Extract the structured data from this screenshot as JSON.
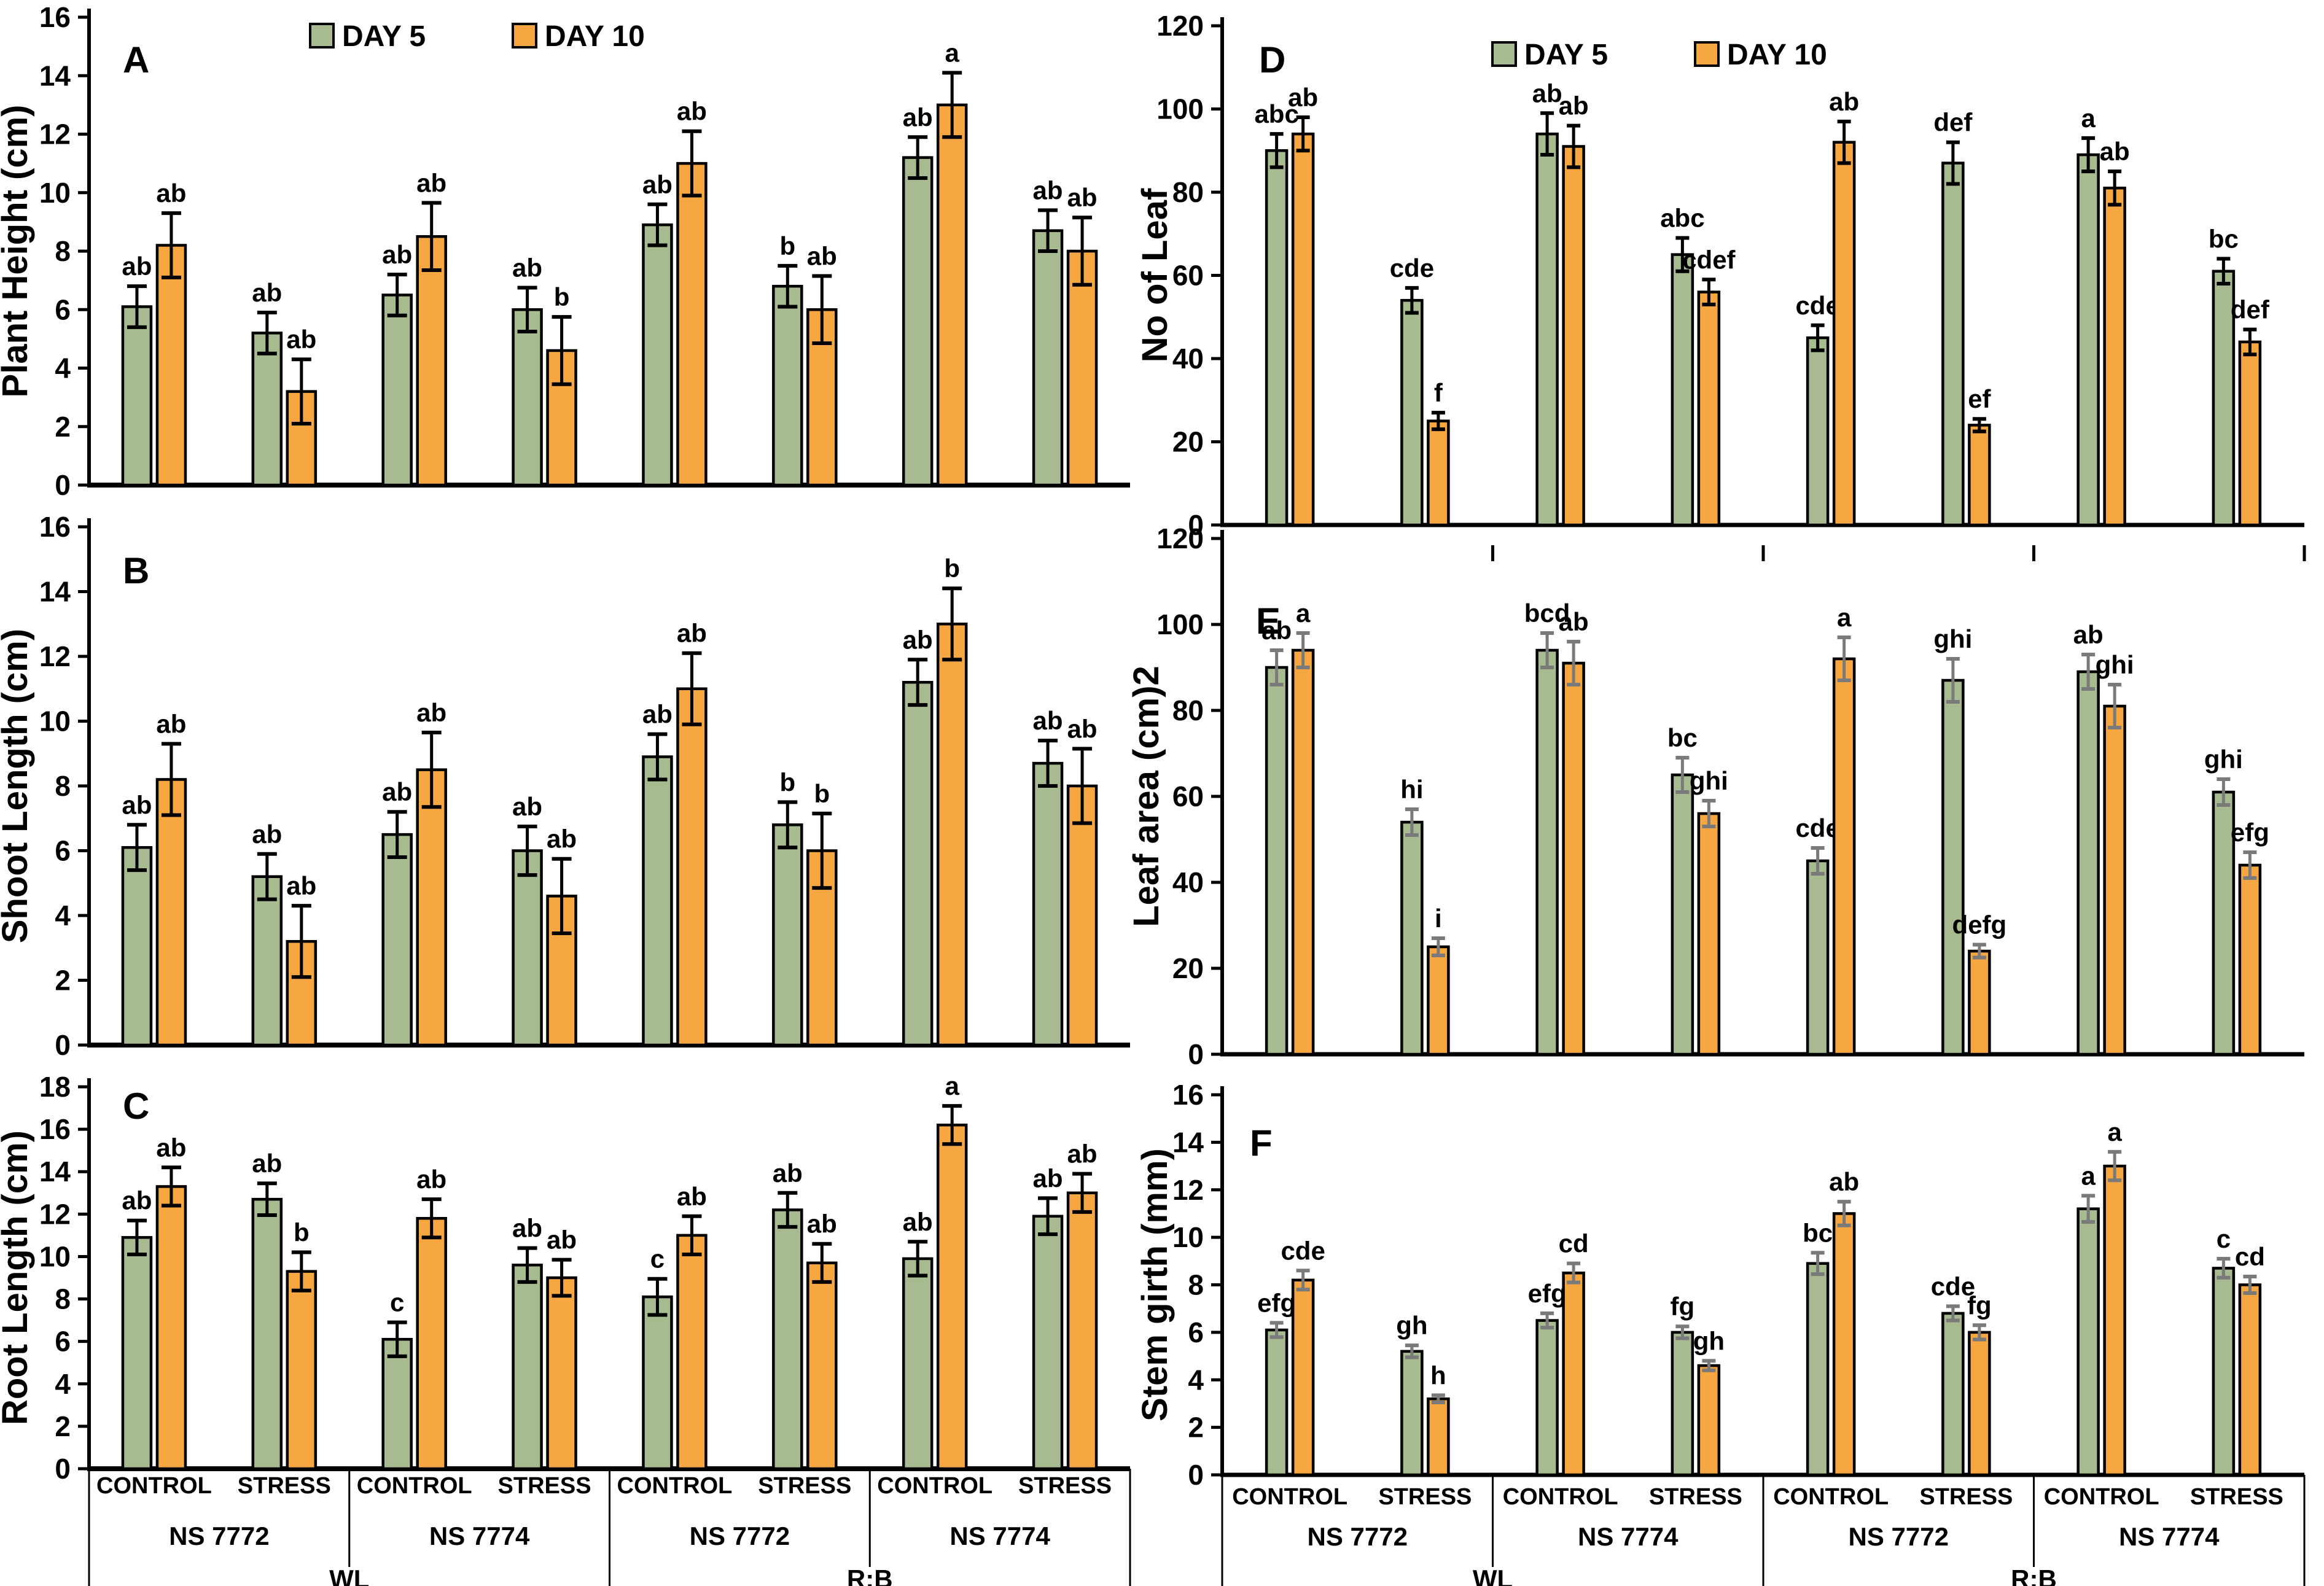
{
  "legend": {
    "day5_label": "DAY 5",
    "day10_label": "DAY 10"
  },
  "colors": {
    "day5_fill": "#a8ba8f",
    "day10_fill": "#f6a742",
    "bar_stroke": "#000000",
    "error_black": "#000000",
    "error_grey": "#7a7a7a",
    "axis": "#000000",
    "background": "#ffffff"
  },
  "categories": {
    "treatments": [
      "CONTROL",
      "STRESS",
      "CONTROL",
      "STRESS",
      "CONTROL",
      "STRESS",
      "CONTROL",
      "STRESS"
    ],
    "cultivars": [
      "NS 7772",
      "NS 7774",
      "NS 7772",
      "NS 7774"
    ],
    "lights": [
      "WL",
      "R:B"
    ]
  },
  "chart_data": [
    {
      "type": "bar",
      "panel": "A",
      "ylabel": "Plant Height (cm)",
      "ylim": [
        0,
        16
      ],
      "ytick_step": 2,
      "legend_shown": true,
      "xaxis_mode": "none",
      "error_color": "black",
      "series": [
        {
          "name": "DAY 5",
          "values": [
            6.1,
            5.2,
            6.5,
            6.0,
            8.9,
            6.8,
            11.2,
            8.7
          ],
          "errors": [
            0.7,
            0.7,
            0.7,
            0.75,
            0.7,
            0.7,
            0.7,
            0.7
          ],
          "letters": [
            "ab",
            "ab",
            "ab",
            "ab",
            "ab",
            "b",
            "ab",
            "ab"
          ]
        },
        {
          "name": "DAY 10",
          "values": [
            8.2,
            3.2,
            8.5,
            4.6,
            11.0,
            6.0,
            13.0,
            8.0
          ],
          "errors": [
            1.1,
            1.1,
            1.15,
            1.15,
            1.1,
            1.15,
            1.1,
            1.15
          ],
          "letters": [
            "ab",
            "ab",
            "ab",
            "b",
            "ab",
            "ab",
            "a",
            "ab"
          ]
        }
      ]
    },
    {
      "type": "bar",
      "panel": "B",
      "ylabel": "Shoot Length (cm)",
      "ylim": [
        0,
        16
      ],
      "ytick_step": 2,
      "legend_shown": false,
      "xaxis_mode": "none",
      "error_color": "black",
      "series": [
        {
          "name": "DAY 5",
          "values": [
            6.1,
            5.2,
            6.5,
            6.0,
            8.9,
            6.8,
            11.2,
            8.7
          ],
          "errors": [
            0.7,
            0.7,
            0.7,
            0.75,
            0.7,
            0.7,
            0.7,
            0.7
          ],
          "letters": [
            "ab",
            "ab",
            "ab",
            "ab",
            "ab",
            "b",
            "ab",
            "ab"
          ]
        },
        {
          "name": "DAY 10",
          "values": [
            8.2,
            3.2,
            8.5,
            4.6,
            11.0,
            6.0,
            13.0,
            8.0
          ],
          "errors": [
            1.1,
            1.1,
            1.15,
            1.15,
            1.1,
            1.15,
            1.1,
            1.15
          ],
          "letters": [
            "ab",
            "ab",
            "ab",
            "ab",
            "ab",
            "b",
            "b",
            "ab"
          ]
        }
      ]
    },
    {
      "type": "bar",
      "panel": "C",
      "ylabel": "Root Length (cm)",
      "ylim": [
        0,
        18
      ],
      "ytick_step": 2,
      "legend_shown": false,
      "xaxis_mode": "table",
      "error_color": "black",
      "series": [
        {
          "name": "DAY 5",
          "values": [
            10.9,
            12.7,
            6.1,
            9.6,
            8.1,
            12.2,
            9.9,
            11.9
          ],
          "errors": [
            0.8,
            0.75,
            0.8,
            0.8,
            0.85,
            0.8,
            0.8,
            0.85
          ],
          "letters": [
            "ab",
            "ab",
            "c",
            "ab",
            "c",
            "ab",
            "ab",
            "ab"
          ]
        },
        {
          "name": "DAY 10",
          "values": [
            13.3,
            9.3,
            11.8,
            9.0,
            11.0,
            9.7,
            16.2,
            13.0
          ],
          "errors": [
            0.9,
            0.9,
            0.9,
            0.85,
            0.9,
            0.9,
            0.9,
            0.9
          ],
          "letters": [
            "ab",
            "b",
            "ab",
            "ab",
            "ab",
            "ab",
            "a",
            "ab"
          ]
        }
      ]
    },
    {
      "type": "bar",
      "panel": "D",
      "ylabel": "No of Leaf",
      "ylim": [
        0,
        120
      ],
      "ytick_step": 20,
      "legend_shown": true,
      "xaxis_mode": "ticks",
      "error_color": "black",
      "series": [
        {
          "name": "DAY 5",
          "values": [
            90,
            54,
            94,
            65,
            45,
            87,
            89,
            61
          ],
          "errors": [
            4,
            3,
            5,
            4,
            3,
            5,
            4,
            3
          ],
          "letters": [
            "abc",
            "cde",
            "ab",
            "abc",
            "cde",
            "def",
            "a",
            "bc"
          ]
        },
        {
          "name": "DAY 10",
          "values": [
            94,
            25,
            91,
            56,
            92,
            24,
            81,
            44
          ],
          "errors": [
            4,
            2,
            5,
            3,
            5,
            1.5,
            4,
            3
          ],
          "letters": [
            "ab",
            "f",
            "ab",
            "cdef",
            "ab",
            "ef",
            "ab",
            "def"
          ]
        }
      ]
    },
    {
      "type": "bar",
      "panel": "E",
      "ylabel": "Leaf area (cm)2",
      "ylim": [
        0,
        120
      ],
      "ytick_step": 20,
      "legend_shown": false,
      "xaxis_mode": "none",
      "error_color": "grey",
      "series": [
        {
          "name": "DAY 5",
          "values": [
            90,
            54,
            94,
            65,
            45,
            87,
            89,
            61
          ],
          "errors": [
            4,
            3,
            4,
            4,
            3,
            5,
            4,
            3
          ],
          "letters": [
            "ab",
            "hi",
            "bcd",
            "bc",
            "cde",
            "ghi",
            "ab",
            "ghi"
          ]
        },
        {
          "name": "DAY 10",
          "values": [
            94,
            25,
            91,
            56,
            92,
            24,
            81,
            44
          ],
          "errors": [
            4,
            2,
            5,
            3,
            5,
            1.5,
            5,
            3
          ],
          "letters": [
            "a",
            "i",
            "ab",
            "ghi",
            "a",
            "defg",
            "ghi",
            "efg"
          ]
        }
      ]
    },
    {
      "type": "bar",
      "panel": "F",
      "ylabel": "Stem girth (mm)",
      "ylim": [
        0,
        16
      ],
      "ytick_step": 2,
      "legend_shown": false,
      "xaxis_mode": "table",
      "error_color": "grey",
      "series": [
        {
          "name": "DAY 5",
          "values": [
            6.1,
            5.2,
            6.5,
            6.0,
            8.9,
            6.8,
            11.2,
            8.7
          ],
          "errors": [
            0.3,
            0.25,
            0.3,
            0.25,
            0.45,
            0.3,
            0.55,
            0.4
          ],
          "letters": [
            "efg",
            "gh",
            "efg",
            "fg",
            "bc",
            "cde",
            "a",
            "c"
          ]
        },
        {
          "name": "DAY 10",
          "values": [
            8.2,
            3.2,
            8.5,
            4.6,
            11.0,
            6.0,
            13.0,
            8.0
          ],
          "errors": [
            0.4,
            0.15,
            0.4,
            0.2,
            0.5,
            0.3,
            0.6,
            0.35
          ],
          "letters": [
            "cde",
            "h",
            "cd",
            "gh",
            "ab",
            "fg",
            "a",
            "cd"
          ]
        }
      ]
    }
  ]
}
